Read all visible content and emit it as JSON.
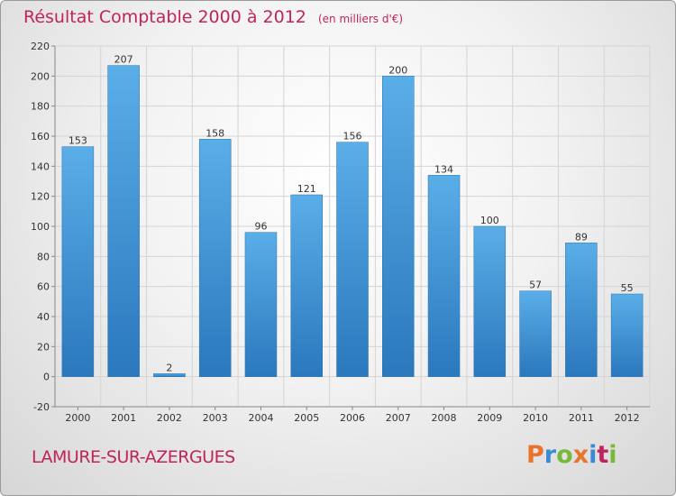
{
  "title": {
    "main": "Résultat Comptable 2000 à 2012",
    "sub": "(en milliers d'€)"
  },
  "town": "LAMURE-SUR-AZERGUES",
  "logo": {
    "letters": [
      "P",
      "r",
      "o",
      "x",
      "i",
      "t",
      "i"
    ],
    "colors": [
      "#e8752b",
      "#3a8ad6",
      "#7ab83c",
      "#e8752b",
      "#3a8ad6",
      "#c0245c",
      "#7ab83c"
    ]
  },
  "colors": {
    "bar_top": "#5aaee8",
    "bar_bottom": "#2b78bd",
    "grid": "#d4d4d4",
    "axis": "#888888",
    "text": "#333333",
    "brand": "#c0245c"
  },
  "chart_data": {
    "type": "bar",
    "categories": [
      "2000",
      "2001",
      "2002",
      "2003",
      "2004",
      "2005",
      "2006",
      "2007",
      "2008",
      "2009",
      "2010",
      "2011",
      "2012"
    ],
    "values": [
      153,
      207,
      2,
      158,
      96,
      121,
      156,
      200,
      134,
      100,
      57,
      89,
      55
    ],
    "title": "Résultat Comptable 2000 à 2012",
    "subtitle": "(en milliers d'€)",
    "xlabel": "",
    "ylabel": "",
    "ylim": [
      -20,
      220
    ],
    "yticks": [
      -20,
      0,
      20,
      40,
      60,
      80,
      100,
      120,
      140,
      160,
      180,
      200,
      220
    ],
    "grid": true
  }
}
